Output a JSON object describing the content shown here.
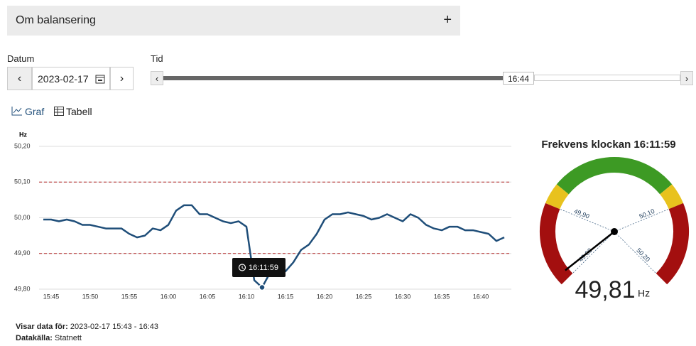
{
  "header": {
    "title": "Om balansering",
    "toggle": "+"
  },
  "controls": {
    "date_label": "Datum",
    "date": "2023-02-17",
    "time_label": "Tid",
    "time": "16:44"
  },
  "tabs": [
    "Graf",
    "Tabell"
  ],
  "chart_data": [
    {
      "type": "line",
      "y_label": "Hz",
      "tooltip": "16:11:59",
      "categories": [
        null,
        "15:45",
        null,
        null,
        null,
        null,
        "15:50",
        null,
        null,
        null,
        null,
        "15:55",
        null,
        null,
        null,
        null,
        "16:00",
        null,
        null,
        null,
        null,
        "16:05",
        null,
        null,
        null,
        null,
        "16:10",
        null,
        null,
        null,
        null,
        "16:15",
        null,
        null,
        null,
        null,
        "16:20",
        null,
        null,
        null,
        null,
        "16:25",
        null,
        null,
        null,
        null,
        "16:30",
        null,
        null,
        null,
        null,
        "16:35",
        null,
        null,
        null,
        null,
        "16:40",
        null,
        null,
        null
      ],
      "values": [
        49.995,
        49.995,
        49.99,
        49.995,
        49.99,
        49.98,
        49.98,
        49.975,
        49.97,
        49.97,
        49.97,
        49.955,
        49.945,
        49.95,
        49.97,
        49.965,
        49.98,
        50.02,
        50.035,
        50.035,
        50.01,
        50.01,
        50.0,
        49.99,
        49.985,
        49.99,
        49.975,
        49.825,
        49.805,
        49.845,
        49.85,
        49.85,
        49.875,
        49.91,
        49.925,
        49.955,
        49.995,
        50.01,
        50.01,
        50.015,
        50.01,
        50.005,
        49.995,
        50.0,
        50.01,
        50.0,
        49.99,
        50.01,
        50.0,
        49.98,
        49.97,
        49.965,
        49.975,
        49.975,
        49.965,
        49.965,
        49.96,
        49.955,
        49.935,
        49.945
      ],
      "color": "#1f4e79",
      "ylim": [
        49.8,
        50.2
      ],
      "yticks": [
        {
          "value": 49.8,
          "label": "49,80"
        },
        {
          "value": 49.9,
          "label": "49,90"
        },
        {
          "value": 50.0,
          "label": "50,00"
        },
        {
          "value": 50.1,
          "label": "50,10"
        },
        {
          "value": 50.2,
          "label": "50,20"
        }
      ],
      "grid": true,
      "limit_lines": [
        49.9,
        50.1
      ],
      "limit_color": "#b22222"
    },
    {
      "type": "gauge",
      "title": "Frekvens klockan 16:11:59",
      "value": 49.81,
      "value_label": "49,81",
      "unit": "Hz",
      "range": [
        49.8,
        50.2
      ],
      "ticks": [
        {
          "value": 49.8,
          "label": "49,80"
        },
        {
          "value": 49.9,
          "label": "49,90"
        },
        {
          "value": 50.1,
          "label": "50,10"
        },
        {
          "value": 50.2,
          "label": "50,20"
        }
      ],
      "bands": [
        {
          "from": 49.8,
          "to": 49.9,
          "color": "#a30f0f"
        },
        {
          "from": 49.9,
          "to": 49.925,
          "color": "#e8c21e"
        },
        {
          "from": 49.925,
          "to": 50.075,
          "color": "#3d9a24"
        },
        {
          "from": 50.075,
          "to": 50.1,
          "color": "#e8c21e"
        },
        {
          "from": 50.1,
          "to": 50.2,
          "color": "#a30f0f"
        }
      ],
      "needle_color": "#000000"
    }
  ],
  "footer": {
    "shown_label": "Visar data för:",
    "shown": "2023-02-17 15:43 - 16:43",
    "source_label": "Datakälla:",
    "source": "Statnett"
  }
}
